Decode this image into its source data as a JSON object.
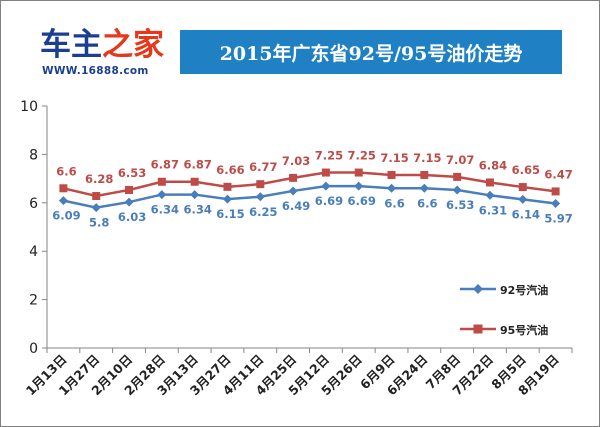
{
  "logo": {
    "part1": "车主",
    "part2": "之家",
    "url": "WWW.16888.com"
  },
  "chart_data": {
    "type": "line",
    "title": "2015年广东省92号/95号油价走势",
    "categories": [
      "1月13日",
      "1月27日",
      "2月10日",
      "2月28日",
      "3月13日",
      "3月27日",
      "4月11日",
      "4月25日",
      "5月12日",
      "5月26日",
      "6月9日",
      "6月24日",
      "7月8日",
      "7月22日",
      "8月5日",
      "8月19日"
    ],
    "ylim": [
      0,
      10
    ],
    "yticks": [
      0,
      2,
      4,
      6,
      8,
      10
    ],
    "xlabel": "",
    "ylabel": "",
    "grid": false,
    "legend_position": "right",
    "series": [
      {
        "name": "92号汽油",
        "color": "#4a7ebb",
        "marker": "diamond",
        "values": [
          6.09,
          5.8,
          6.03,
          6.34,
          6.34,
          6.15,
          6.25,
          6.49,
          6.69,
          6.69,
          6.6,
          6.6,
          6.53,
          6.31,
          6.14,
          5.97
        ]
      },
      {
        "name": "95号汽油",
        "color": "#be4b48",
        "marker": "square",
        "values": [
          6.6,
          6.28,
          6.53,
          6.87,
          6.87,
          6.66,
          6.77,
          7.03,
          7.25,
          7.25,
          7.15,
          7.15,
          7.07,
          6.84,
          6.65,
          6.47
        ]
      }
    ]
  }
}
